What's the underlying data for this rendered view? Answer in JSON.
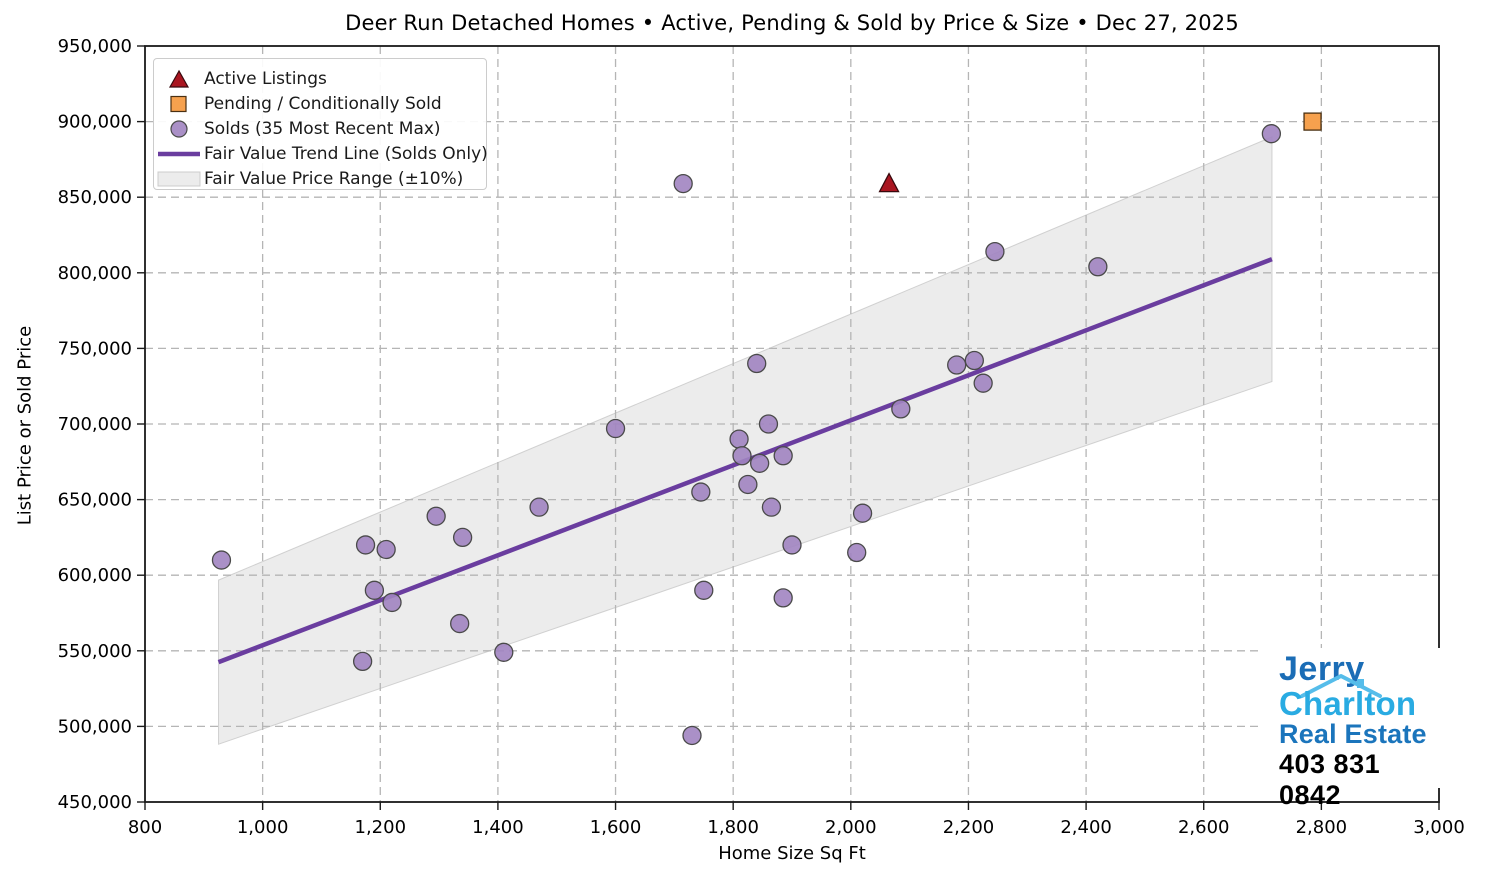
{
  "chart_data": {
    "type": "scatter",
    "title": "Deer Run Detached Homes • Active, Pending & Sold by Price & Size • Dec 27, 2025",
    "xlabel": "Home Size Sq Ft",
    "ylabel": "List Price or Sold Price",
    "xlim": [
      800,
      3000
    ],
    "ylim": [
      450000,
      950000
    ],
    "x_ticks": [
      800,
      1000,
      1200,
      1400,
      1600,
      1800,
      2000,
      2200,
      2400,
      2600,
      2800,
      3000
    ],
    "y_ticks": [
      450000,
      500000,
      550000,
      600000,
      650000,
      700000,
      750000,
      800000,
      850000,
      900000,
      950000
    ],
    "grid": true,
    "legend_position": "upper-left",
    "series": [
      {
        "name": "Active Listings",
        "type": "scatter",
        "marker": "triangle",
        "color": "#a91520",
        "edge": "#38090d",
        "points": [
          [
            2065,
            859000
          ]
        ]
      },
      {
        "name": "Pending / Conditionally Sold",
        "type": "scatter",
        "marker": "square",
        "color": "#f6a14e",
        "edge": "#4a3012",
        "points": [
          [
            2785,
            900000
          ]
        ]
      },
      {
        "name": "Solds (35 Most Recent Max)",
        "type": "scatter",
        "marker": "circle",
        "color": "#a184c1",
        "edge": "#4a4a4a",
        "points": [
          [
            930,
            610000
          ],
          [
            1170,
            543000
          ],
          [
            1175,
            620000
          ],
          [
            1190,
            590000
          ],
          [
            1210,
            617000
          ],
          [
            1220,
            582000
          ],
          [
            1295,
            639000
          ],
          [
            1335,
            568000
          ],
          [
            1340,
            625000
          ],
          [
            1410,
            549000
          ],
          [
            1470,
            645000
          ],
          [
            1600,
            697000
          ],
          [
            1715,
            859000
          ],
          [
            1730,
            494000
          ],
          [
            1745,
            655000
          ],
          [
            1750,
            590000
          ],
          [
            1810,
            690000
          ],
          [
            1815,
            679000
          ],
          [
            1825,
            660000
          ],
          [
            1840,
            740000
          ],
          [
            1845,
            674000
          ],
          [
            1860,
            700000
          ],
          [
            1865,
            645000
          ],
          [
            1885,
            679000
          ],
          [
            1885,
            585000
          ],
          [
            1900,
            620000
          ],
          [
            2010,
            615000
          ],
          [
            2020,
            641000
          ],
          [
            2085,
            710000
          ],
          [
            2180,
            739000
          ],
          [
            2210,
            742000
          ],
          [
            2225,
            727000
          ],
          [
            2245,
            814000
          ],
          [
            2420,
            804000
          ],
          [
            2715,
            892000
          ]
        ]
      },
      {
        "name": "Fair Value Trend Line (Solds Only)",
        "type": "line",
        "color": "#6a3d9f",
        "points": [
          [
            925,
            542500
          ],
          [
            2716,
            809000
          ]
        ]
      },
      {
        "name": "Fair Value Price Range (±10%)",
        "type": "band",
        "color": "#d9d9d9",
        "factor": 0.1
      }
    ]
  },
  "colors": {
    "grid": "#b5b5b5",
    "spine": "#1a1a1a",
    "tick_text": "#000000",
    "band_edge": "#cccccc"
  },
  "branding": {
    "line1": "Jerry",
    "line2": "Charlton",
    "line3": "Real Estate",
    "phone": "403 831 0842",
    "color_jerry": "#1b6db6",
    "color_charlton": "#29abe2",
    "color_realestate": "#1b75bc",
    "color_roof": "#56bdea"
  }
}
